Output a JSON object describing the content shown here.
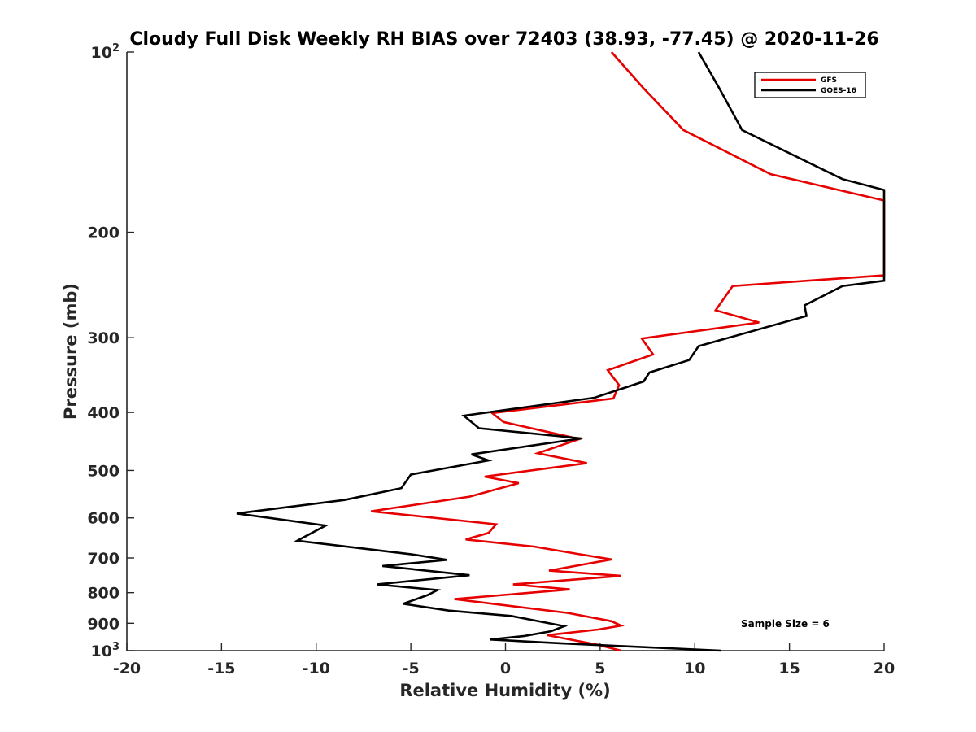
{
  "chart_data": {
    "type": "line",
    "title": "Cloudy Full Disk Weekly RH BIAS over 72403 (38.93, -77.45) @ 2020-11-26",
    "xlabel": "Relative Humidity (%)",
    "ylabel": "Pressure (mb)",
    "xlim": [
      -20,
      20
    ],
    "ylim": [
      100,
      1000
    ],
    "y_scale": "log",
    "y_reversed": true,
    "x_ticks": [
      "-20",
      "-15",
      "-10",
      "-5",
      "0",
      "5",
      "10",
      "15",
      "20"
    ],
    "y_ticks": [
      {
        "value": 100,
        "base": "10",
        "exp": "2"
      },
      {
        "value": 200,
        "label": "200"
      },
      {
        "value": 300,
        "label": "300"
      },
      {
        "value": 400,
        "label": "400"
      },
      {
        "value": 500,
        "label": "500"
      },
      {
        "value": 600,
        "label": "600"
      },
      {
        "value": 700,
        "label": "700"
      },
      {
        "value": 800,
        "label": "800"
      },
      {
        "value": 900,
        "label": "900"
      },
      {
        "value": 1000,
        "base": "10",
        "exp": "3"
      }
    ],
    "grid": false,
    "legend_position": "top-right",
    "series": [
      {
        "name": "GFS",
        "color": "#e60000",
        "points": [
          [
            5.6,
            100
          ],
          [
            7.3,
            115
          ],
          [
            9.4,
            135
          ],
          [
            14.0,
            160
          ],
          [
            20.0,
            177
          ],
          [
            20.0,
            236
          ],
          [
            12.0,
            246
          ],
          [
            11.1,
            270
          ],
          [
            13.4,
            283
          ],
          [
            7.2,
            301
          ],
          [
            7.8,
            320
          ],
          [
            5.4,
            340
          ],
          [
            6.0,
            360
          ],
          [
            5.7,
            379
          ],
          [
            -0.7,
            401
          ],
          [
            -0.1,
            415
          ],
          [
            3.9,
            443
          ],
          [
            1.7,
            468
          ],
          [
            4.3,
            486
          ],
          [
            -1.1,
            512
          ],
          [
            0.7,
            525
          ],
          [
            -1.9,
            553
          ],
          [
            -7.1,
            585
          ],
          [
            -0.5,
            615
          ],
          [
            -0.9,
            636
          ],
          [
            -2.1,
            652
          ],
          [
            1.5,
            670
          ],
          [
            3.9,
            690
          ],
          [
            5.6,
            704
          ],
          [
            2.3,
            735
          ],
          [
            6.1,
            750
          ],
          [
            0.4,
            775
          ],
          [
            3.4,
            790
          ],
          [
            -2.7,
            820
          ],
          [
            3.3,
            865
          ],
          [
            5.6,
            893
          ],
          [
            6.1,
            908
          ],
          [
            4.9,
            922
          ],
          [
            2.2,
            942
          ],
          [
            4.9,
            978
          ],
          [
            6.1,
            1000
          ]
        ]
      },
      {
        "name": "GOES-16",
        "color": "#000000",
        "points": [
          [
            10.2,
            100
          ],
          [
            11.3,
            115
          ],
          [
            12.5,
            135
          ],
          [
            17.8,
            163
          ],
          [
            20.0,
            170
          ],
          [
            20.0,
            241
          ],
          [
            17.8,
            246
          ],
          [
            15.8,
            265
          ],
          [
            15.9,
            276
          ],
          [
            10.2,
            310
          ],
          [
            9.7,
            327
          ],
          [
            7.6,
            343
          ],
          [
            7.3,
            355
          ],
          [
            4.7,
            378
          ],
          [
            -2.2,
            405
          ],
          [
            -1.4,
            425
          ],
          [
            4.0,
            442
          ],
          [
            -1.8,
            470
          ],
          [
            -0.9,
            481
          ],
          [
            -5.0,
            508
          ],
          [
            -5.5,
            535
          ],
          [
            -8.5,
            560
          ],
          [
            -14.2,
            590
          ],
          [
            -9.5,
            618
          ],
          [
            -11.0,
            655
          ],
          [
            -5.0,
            690
          ],
          [
            -3.1,
            705
          ],
          [
            -6.5,
            722
          ],
          [
            -1.9,
            748
          ],
          [
            -6.8,
            775
          ],
          [
            -3.6,
            792
          ],
          [
            -4.1,
            807
          ],
          [
            -5.4,
            835
          ],
          [
            -3.0,
            857
          ],
          [
            0.3,
            875
          ],
          [
            3.1,
            910
          ],
          [
            2.4,
            928
          ],
          [
            1.0,
            945
          ],
          [
            -0.8,
            958
          ],
          [
            2.9,
            972
          ],
          [
            5.9,
            982
          ],
          [
            11.4,
            1000
          ]
        ]
      }
    ],
    "annotation": "Sample Size = 6"
  }
}
